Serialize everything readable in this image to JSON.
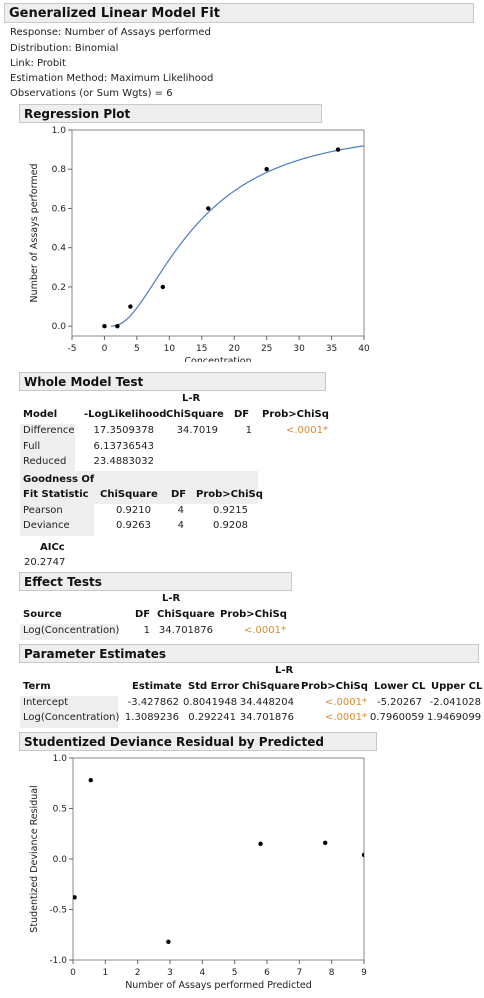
{
  "header": {
    "title": "Generalized Linear Model Fit"
  },
  "info_lines": [
    "Response: Number of Assays performed",
    "Distribution: Binomial",
    "Link: Probit",
    "Estimation Method: Maximum Likelihood",
    "Observations (or Sum Wgts) = 6"
  ],
  "regression": {
    "header": "Regression Plot",
    "chart_data": {
      "type": "scatter",
      "xlabel": "Concentration",
      "ylabel": "Number of Assays performed",
      "xlim": [
        -5,
        40
      ],
      "ylim": [
        -0.05,
        1.0
      ],
      "x_ticks": [
        "-5",
        "0",
        "5",
        "10",
        "15",
        "20",
        "25",
        "30",
        "35",
        "40"
      ],
      "y_ticks": [
        "0.0",
        "0.2",
        "0.4",
        "0.6",
        "0.8",
        "1.0"
      ],
      "points": [
        [
          0,
          0.0
        ],
        [
          2,
          0.0
        ],
        [
          4,
          0.1
        ],
        [
          9,
          0.2
        ],
        [
          16,
          0.6
        ],
        [
          25,
          0.8
        ],
        [
          36,
          0.9
        ]
      ],
      "fit_curve": {
        "model": "probit",
        "intercept": -3.427862,
        "slope": 1.3089236,
        "transform": "log",
        "x_start": 1,
        "x_end": 40
      },
      "colors": {
        "points": "#000000",
        "curve": "#4a7dc0"
      }
    }
  },
  "whole_model": {
    "header": "Whole Model Test",
    "col_lr": "L-R",
    "columns": [
      "Model",
      "-LogLikelihood",
      "ChiSquare",
      "DF",
      "Prob>ChiSq"
    ],
    "rows": [
      {
        "model": "Difference",
        "loglik": "17.3509378",
        "chisq": "34.7019",
        "df": "1",
        "prob": "<.0001*"
      },
      {
        "model": "Full",
        "loglik": "6.13736543"
      },
      {
        "model": "Reduced",
        "loglik": "23.4883032"
      }
    ]
  },
  "gof": {
    "header_line1": "Goodness Of",
    "header_line2": "Fit Statistic",
    "columns": [
      "ChiSquare",
      "DF",
      "Prob>ChiSq"
    ],
    "rows": [
      {
        "stat": "Pearson",
        "chisq": "0.9210",
        "df": "4",
        "prob": "0.9215"
      },
      {
        "stat": "Deviance",
        "chisq": "0.9263",
        "df": "4",
        "prob": "0.9208"
      }
    ]
  },
  "aicc": {
    "label": "AICc",
    "value": "20.2747"
  },
  "effect_tests": {
    "header": "Effect Tests",
    "col_lr": "L-R",
    "columns": [
      "Source",
      "DF",
      "ChiSquare",
      "Prob>ChiSq"
    ],
    "rows": [
      {
        "source": "Log(Concentration)",
        "df": "1",
        "chisq": "34.701876",
        "prob": "<.0001*"
      }
    ]
  },
  "param_estimates": {
    "header": "Parameter Estimates",
    "col_lr": "L-R",
    "columns": [
      "Term",
      "Estimate",
      "Std Error",
      "ChiSquare",
      "Prob>ChiSq",
      "Lower CL",
      "Upper CL"
    ],
    "rows": [
      {
        "term": "Intercept",
        "estimate": "-3.427862",
        "stderr": "0.8041948",
        "chisq": "34.448204",
        "prob": "<.0001*",
        "lower": "-5.20267",
        "upper": "-2.041028"
      },
      {
        "term": "Log(Concentration)",
        "estimate": "1.3089236",
        "stderr": "0.292241",
        "chisq": "34.701876",
        "prob": "<.0001*",
        "lower": "0.7960059",
        "upper": "1.9469099"
      }
    ]
  },
  "residual": {
    "header": "Studentized Deviance Residual by Predicted",
    "chart_data": {
      "type": "scatter",
      "xlabel": "Number of Assays performed Predicted",
      "ylabel": "Studentized Deviance Residual",
      "xlim": [
        0,
        9
      ],
      "ylim": [
        -1.0,
        1.0
      ],
      "x_ticks": [
        "0",
        "1",
        "2",
        "3",
        "4",
        "5",
        "6",
        "7",
        "8",
        "9"
      ],
      "y_ticks": [
        "-1.0",
        "-0.5",
        "0.0",
        "0.5",
        "1.0"
      ],
      "points": [
        [
          0.05,
          -0.38
        ],
        [
          0.55,
          0.78
        ],
        [
          2.95,
          -0.82
        ],
        [
          5.8,
          0.15
        ],
        [
          7.8,
          0.16
        ],
        [
          9.0,
          0.04
        ]
      ],
      "colors": {
        "points": "#000000"
      }
    }
  }
}
